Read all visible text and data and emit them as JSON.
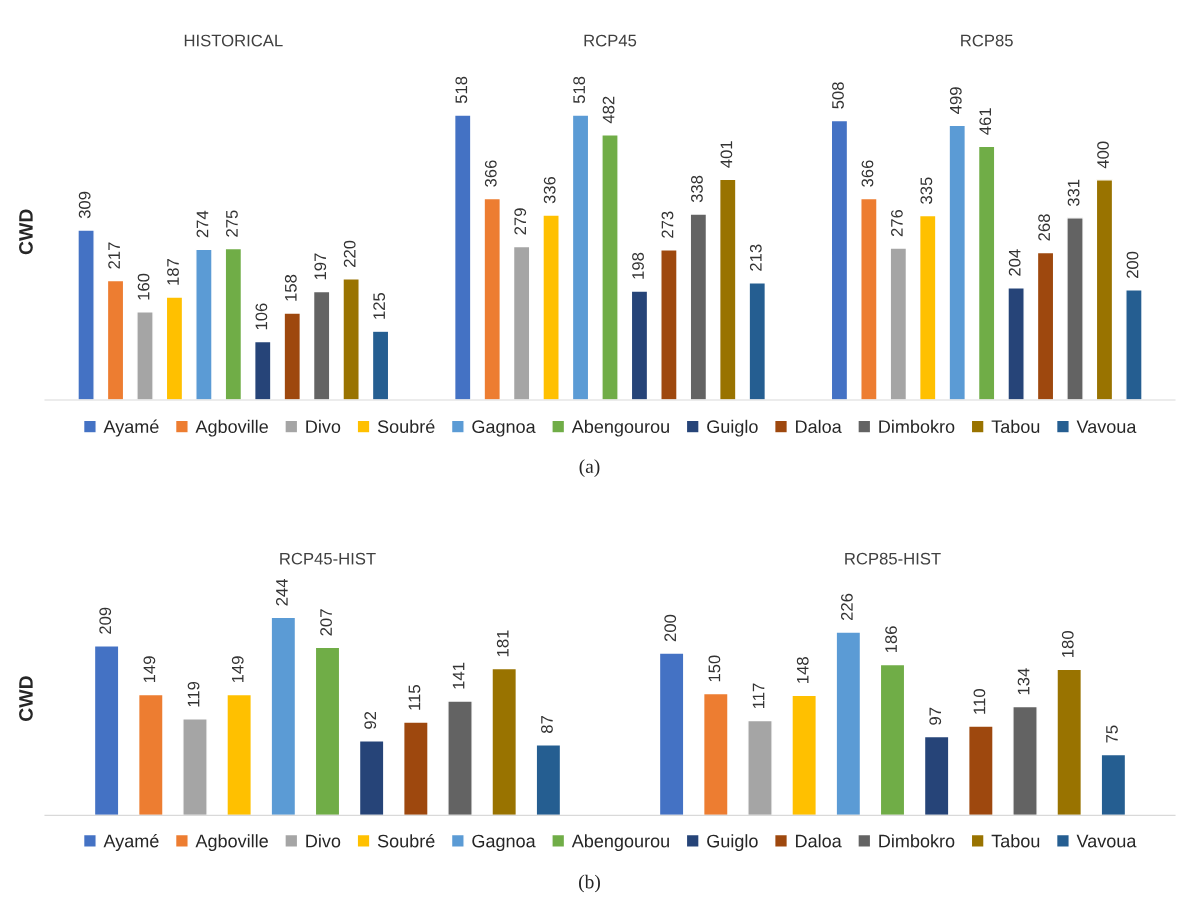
{
  "chart_data": [
    {
      "type": "bar",
      "ylabel": "CWD",
      "legend": "bottom",
      "tick_labels": "x",
      "data_labels": true,
      "annotations": [
        "(a)"
      ],
      "categories": [
        "HISTORICAL",
        "RCP45",
        "RCP85"
      ],
      "series": [
        {
          "name": "Ayamé",
          "color": "#4472c4",
          "values": [
            309,
            518,
            508
          ]
        },
        {
          "name": "Agboville",
          "color": "#ed7d31",
          "values": [
            217,
            366,
            366
          ]
        },
        {
          "name": "Divo",
          "color": "#a5a5a5",
          "values": [
            160,
            279,
            276
          ]
        },
        {
          "name": "Soubré",
          "color": "#ffc000",
          "values": [
            187,
            336,
            335
          ]
        },
        {
          "name": "Gagnoa",
          "color": "#5b9bd5",
          "values": [
            274,
            518,
            499
          ]
        },
        {
          "name": "Abengourou",
          "color": "#70ad47",
          "values": [
            275,
            482,
            461
          ]
        },
        {
          "name": "Guiglo",
          "color": "#264478",
          "values": [
            106,
            198,
            204
          ]
        },
        {
          "name": "Daloa",
          "color": "#9e480e",
          "values": [
            158,
            273,
            268
          ]
        },
        {
          "name": "Dimbokro",
          "color": "#636363",
          "values": [
            197,
            338,
            331
          ]
        },
        {
          "name": "Tabou",
          "color": "#997300",
          "values": [
            220,
            401,
            400
          ]
        },
        {
          "name": "Vavoua",
          "color": "#255e91",
          "values": [
            125,
            213,
            200
          ]
        }
      ]
    },
    {
      "type": "bar",
      "ylabel": "CWD",
      "legend": "bottom",
      "tick_labels": "x",
      "data_labels": true,
      "annotations": [
        "(b)"
      ],
      "categories": [
        "RCP45-HIST",
        "RCP85-HIST"
      ],
      "series": [
        {
          "name": "Ayamé",
          "color": "#4472c4",
          "values": [
            209,
            200
          ]
        },
        {
          "name": "Agboville",
          "color": "#ed7d31",
          "values": [
            149,
            150
          ]
        },
        {
          "name": "Divo",
          "color": "#a5a5a5",
          "values": [
            119,
            117
          ]
        },
        {
          "name": "Soubré",
          "color": "#ffc000",
          "values": [
            149,
            148
          ]
        },
        {
          "name": "Gagnoa",
          "color": "#5b9bd5",
          "values": [
            244,
            226
          ]
        },
        {
          "name": "Abengourou",
          "color": "#70ad47",
          "values": [
            207,
            186
          ]
        },
        {
          "name": "Guiglo",
          "color": "#264478",
          "values": [
            92,
            97
          ]
        },
        {
          "name": "Daloa",
          "color": "#9e480e",
          "values": [
            115,
            110
          ]
        },
        {
          "name": "Dimbokro",
          "color": "#636363",
          "values": [
            141,
            134
          ]
        },
        {
          "name": "Tabou",
          "color": "#997300",
          "values": [
            181,
            180
          ]
        },
        {
          "name": "Vavoua",
          "color": "#255e91",
          "values": [
            87,
            75
          ]
        }
      ]
    }
  ]
}
